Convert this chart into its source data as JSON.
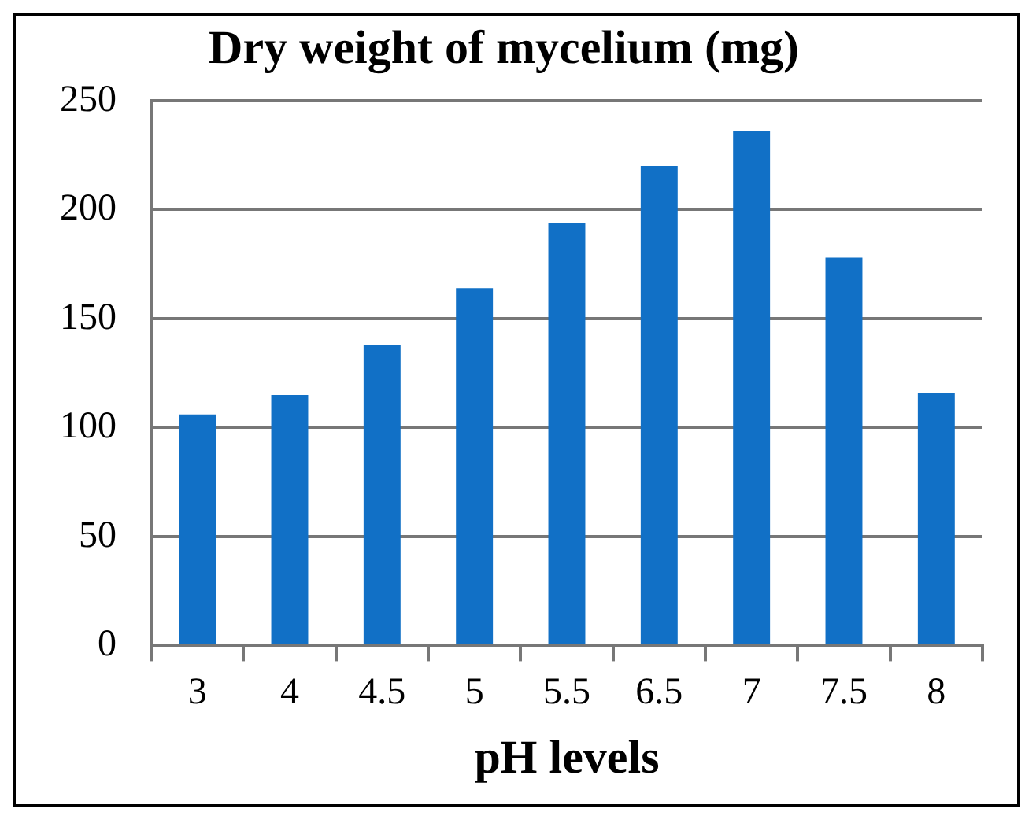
{
  "chart_data": {
    "type": "bar",
    "title": "Dry weight of mycelium (mg)",
    "xlabel": "pH levels",
    "categories": [
      "3",
      "4",
      "4.5",
      "5",
      "5.5",
      "6.5",
      "7",
      "7.5",
      "8"
    ],
    "values": [
      106,
      115,
      138,
      164,
      194,
      220,
      236,
      178,
      116
    ],
    "color": "#1170c6",
    "ylim": [
      0,
      250
    ],
    "yticks": [
      0,
      50,
      100,
      150,
      200,
      250
    ],
    "grid": "y",
    "legend": false
  }
}
